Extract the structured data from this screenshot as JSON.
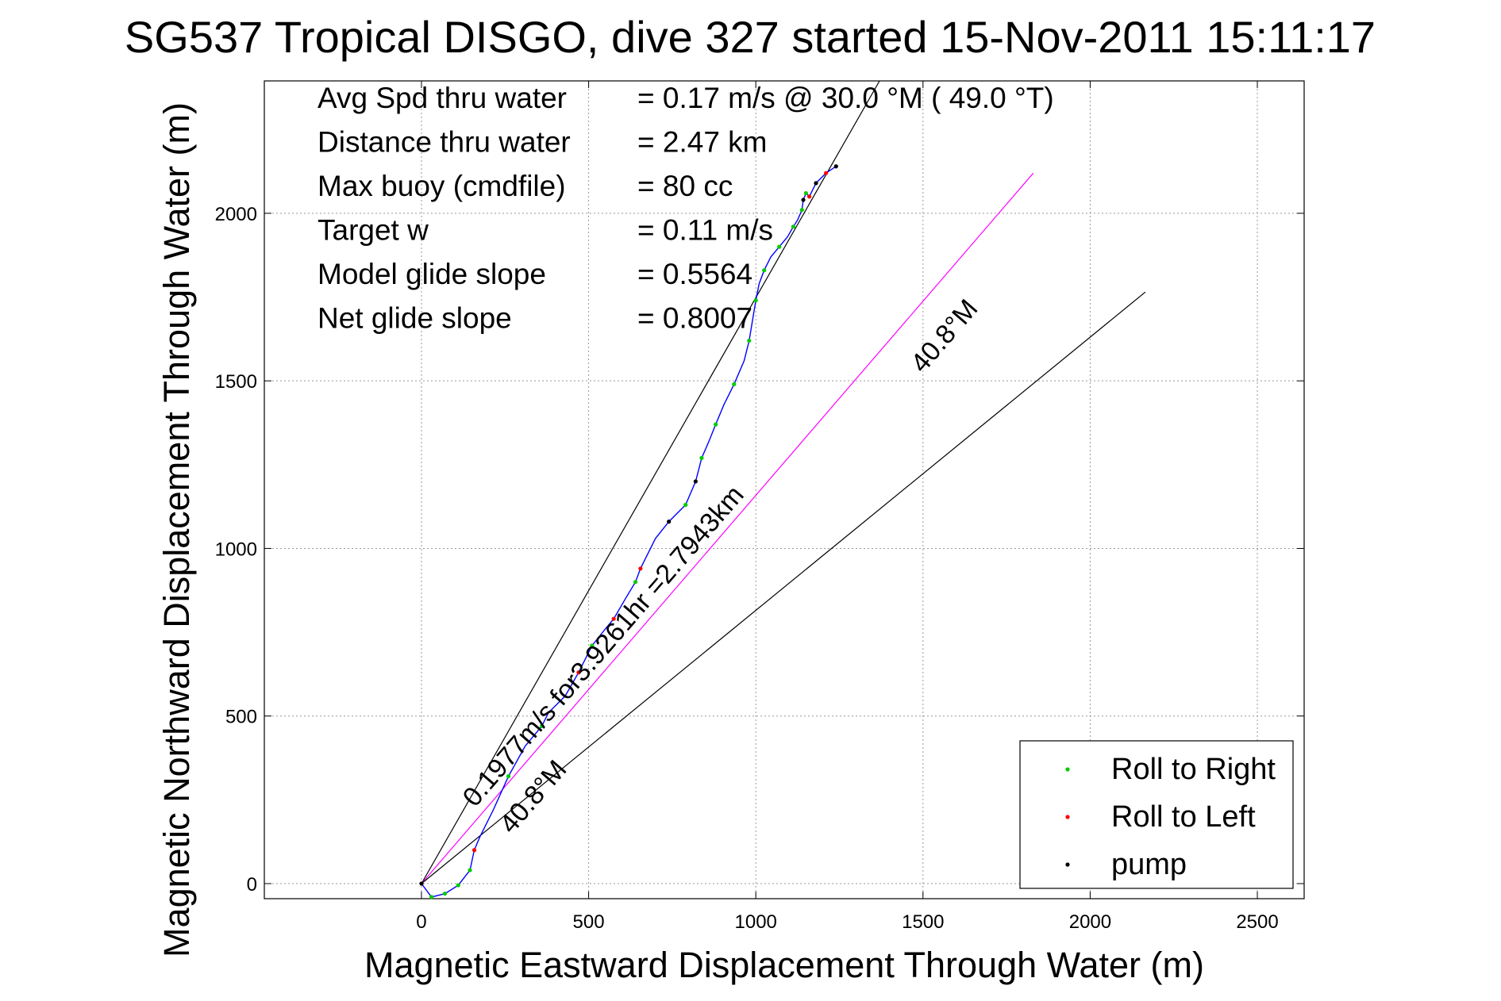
{
  "chart_data": {
    "type": "line",
    "title": "SG537 Tropical DISGO, dive 327 started 15-Nov-2011 15:11:17",
    "xlabel": "Magnetic Eastward Displacement Through Water (m)",
    "ylabel": "Magnetic Northward Displacement Through Water (m)",
    "xlim": [
      -470,
      2640
    ],
    "ylim": [
      -45,
      2395
    ],
    "xticks": [
      0,
      500,
      1000,
      1500,
      2000,
      2500
    ],
    "yticks": [
      0,
      500,
      1000,
      1500,
      2000
    ],
    "grid": true,
    "stats": [
      {
        "label": "Avg Spd thru water",
        "value": "=  0.17 m/s @  30.0 °M ( 49.0 °T)"
      },
      {
        "label": "Distance thru water",
        "value": "=  2.47 km"
      },
      {
        "label": "Max buoy (cmdfile)",
        "value": "= 80 cc"
      },
      {
        "label": "Target w",
        "value": "= 0.11 m/s"
      },
      {
        "label": "Model glide slope",
        "value": "= 0.5564"
      },
      {
        "label": "Net glide slope",
        "value": "= 0.8007"
      }
    ],
    "track": {
      "name": "",
      "color": "#0000ff",
      "x": [
        0,
        30,
        70,
        110,
        145,
        158,
        175,
        215,
        260,
        310,
        360,
        380,
        430,
        470,
        510,
        550,
        575,
        610,
        640,
        655,
        665,
        700,
        740,
        790,
        820,
        838,
        860,
        880,
        905,
        935,
        965,
        980,
        990,
        1000,
        1010,
        1025,
        1045,
        1070,
        1095,
        1112,
        1125,
        1138,
        1142,
        1150,
        1160,
        1180,
        1210,
        1240
      ],
      "y": [
        0,
        -40,
        -30,
        -5,
        40,
        100,
        140,
        220,
        320,
        410,
        470,
        510,
        560,
        630,
        710,
        760,
        790,
        850,
        900,
        940,
        960,
        1030,
        1080,
        1130,
        1200,
        1270,
        1320,
        1370,
        1430,
        1490,
        1560,
        1620,
        1680,
        1740,
        1790,
        1830,
        1870,
        1900,
        1930,
        1960,
        1980,
        2010,
        2040,
        2060,
        2050,
        2090,
        2120,
        2140
      ]
    },
    "markers": [
      {
        "name": "Roll to Right",
        "color": "#00cc00",
        "indices": [
          1,
          2,
          3,
          4,
          8,
          10,
          14,
          18,
          23,
          25,
          27,
          29,
          31,
          33,
          35,
          37,
          39,
          41,
          43
        ]
      },
      {
        "name": "Roll to Left",
        "color": "#ff0000",
        "indices": [
          5,
          13,
          16,
          19,
          44,
          46
        ]
      },
      {
        "name": "pump",
        "color": "#000000",
        "indices": [
          0,
          22,
          24,
          42,
          45,
          47
        ]
      }
    ],
    "lines": [
      {
        "label": "",
        "color": "#000000",
        "from": [
          0,
          0
        ],
        "to": [
          1370,
          2395
        ]
      },
      {
        "label": "40.8°M",
        "color": "#ff00ff",
        "from": [
          0,
          0
        ],
        "to": [
          1830,
          2120
        ]
      },
      {
        "label": "",
        "color": "#000000",
        "from": [
          0,
          0
        ],
        "to": [
          2165,
          1765
        ]
      }
    ],
    "annotations": [
      {
        "text": "0.1977m/s for3.9261hr =2.7943km",
        "x": 160,
        "y": 225,
        "angle": 49.2
      },
      {
        "text": "40.8°M",
        "x": 270,
        "y": 145,
        "angle": 49.2
      },
      {
        "text": "40.8°M",
        "x": 1500,
        "y": 1520,
        "angle": 49.2
      }
    ],
    "legend": {
      "placement": "bottom-right",
      "entries": [
        "Roll to Right",
        "Roll to Left",
        "pump"
      ]
    }
  }
}
